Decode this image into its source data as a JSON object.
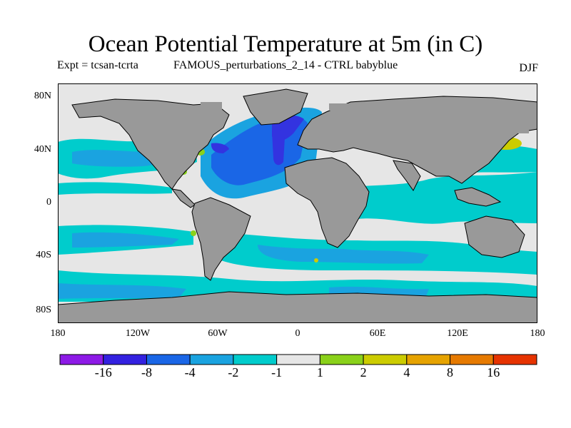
{
  "title": "Ocean Potential Temperature at 5m (in C)",
  "subtitle_left": "Expt = tcsan-tcrta",
  "subtitle_mid": "FAMOUS_perturbations_2_14 - CTRL babyblue",
  "season": "DJF",
  "colors": {
    "land": "#999999",
    "neutral": "#e6e6e6",
    "ocean_cool_light": "#00cccc",
    "ocean_cool_mid": "#1aa3e0",
    "ocean_cool_deep": "#1a66e6",
    "ocean_coldest": "#3333e0",
    "warm": "#8ad11a"
  },
  "lat_labels": [
    "80N",
    "40N",
    "0",
    "40S",
    "80S"
  ],
  "lon_labels": [
    "180",
    "120W",
    "60W",
    "0",
    "60E",
    "120E",
    "180"
  ],
  "colorbar": {
    "colors": [
      "#8d1ae6",
      "#3321e0",
      "#1a66e6",
      "#1aa3e0",
      "#00cccc",
      "#e6e6e6",
      "#8ad11a",
      "#cccc00",
      "#e6a300",
      "#e67a00",
      "#e63300"
    ],
    "labels": [
      "-16",
      "-8",
      "-4",
      "-2",
      "-1",
      "1",
      "2",
      "4",
      "8",
      "16"
    ]
  }
}
